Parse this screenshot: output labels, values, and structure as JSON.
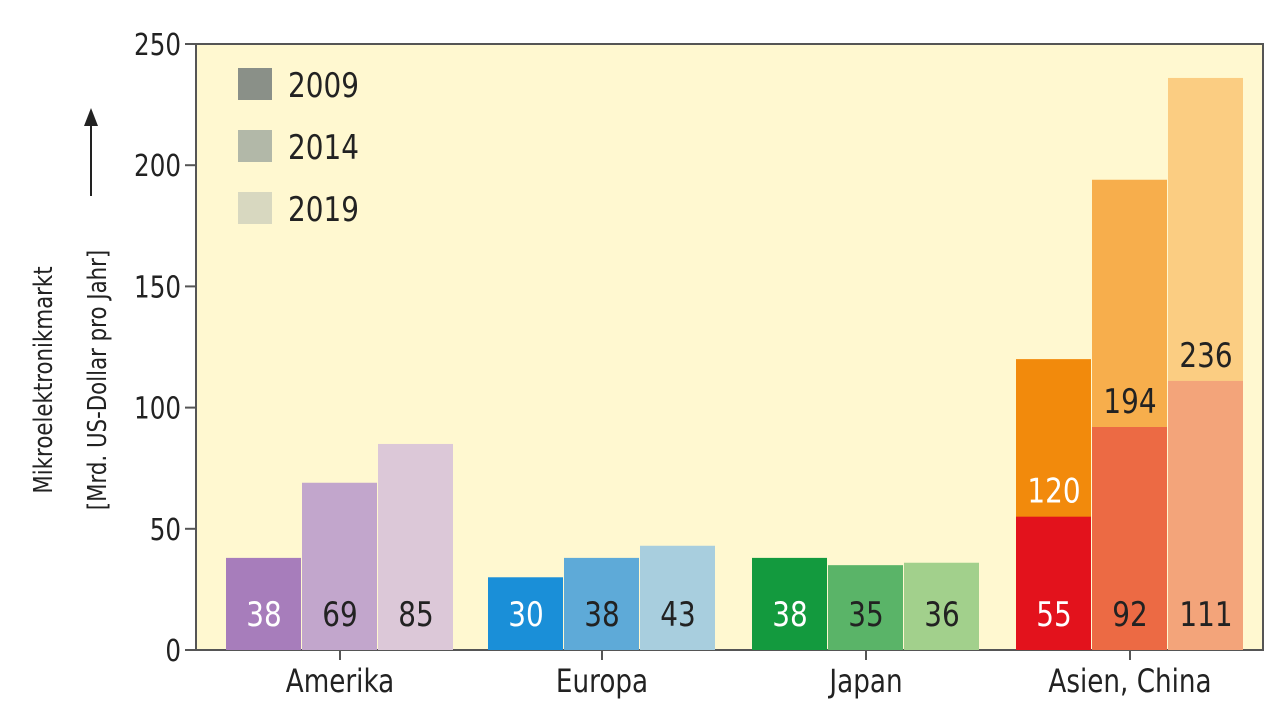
{
  "chart_data": {
    "type": "bar",
    "ylabel_line1": "Mikroelektronikmarkt",
    "ylabel_line2": "[Mrd. US-Dollar pro Jahr]",
    "ylim": [
      0,
      250
    ],
    "yticks": [
      0,
      50,
      100,
      150,
      200,
      250
    ],
    "grid": false,
    "legend": {
      "position": "top-left",
      "entries": [
        {
          "label": "2009",
          "color": "#8a9088"
        },
        {
          "label": "2014",
          "color": "#b2b8a8"
        },
        {
          "label": "2019",
          "color": "#d8d8c0"
        }
      ]
    },
    "categories": [
      "Amerika",
      "Europa",
      "Japan",
      "Asien, China"
    ],
    "series": [
      {
        "name": "2009",
        "values": [
          38,
          30,
          38,
          120
        ]
      },
      {
        "name": "2014",
        "values": [
          69,
          38,
          35,
          194
        ]
      },
      {
        "name": "2019",
        "values": [
          85,
          43,
          36,
          236
        ]
      }
    ],
    "china_share": {
      "values": [
        55,
        92,
        111
      ]
    },
    "colors": {
      "background": "#fff8d0",
      "Amerika": [
        "#a77dbb",
        "#c2a6cc",
        "#dcc8d8"
      ],
      "Europa": [
        "#1a8fd8",
        "#5eaad8",
        "#a8cede"
      ],
      "Japan": [
        "#139a3e",
        "#5ab468",
        "#a2d08c"
      ],
      "Asien, China": [
        "#f28a0c",
        "#f7ae4c",
        "#fbcd82"
      ],
      "China": [
        "#e3121c",
        "#ec6a44",
        "#f3a47a"
      ]
    },
    "label_colors": {
      "Amerika": [
        "#ffffff",
        "#222222",
        "#222222"
      ],
      "Europa": [
        "#ffffff",
        "#222222",
        "#222222"
      ],
      "Japan": [
        "#ffffff",
        "#222222",
        "#222222"
      ],
      "Asien, China": [
        "#ffffff",
        "#222222",
        "#222222"
      ],
      "China": [
        "#ffffff",
        "#222222",
        "#222222"
      ]
    }
  }
}
